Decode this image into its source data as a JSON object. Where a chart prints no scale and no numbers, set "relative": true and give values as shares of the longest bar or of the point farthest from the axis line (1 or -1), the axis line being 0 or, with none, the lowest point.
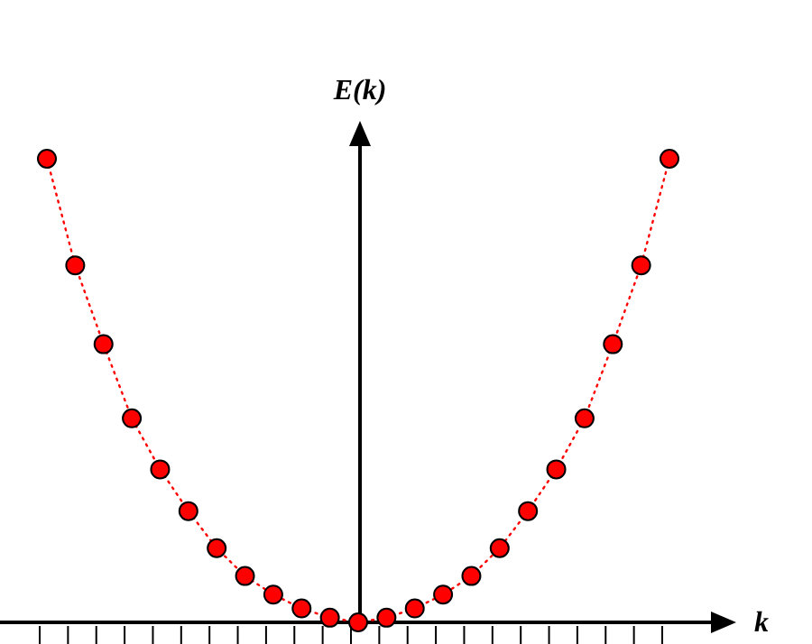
{
  "chart_data": {
    "type": "line",
    "xlabel": "k",
    "ylabel": "E(k)",
    "categories": [
      null,
      null,
      null,
      null,
      null,
      null,
      null,
      null,
      null,
      null,
      null,
      null,
      null,
      null,
      null,
      null,
      null,
      null,
      null,
      null,
      null,
      null,
      null
    ],
    "series": [
      {
        "color": "#ff0000",
        "values": [
          1,
          0.77,
          0.6,
          0.44,
          0.33,
          0.24,
          0.16,
          0.1,
          0.06,
          0.03,
          0.01,
          0,
          0.01,
          0.03,
          0.06,
          0.1,
          0.16,
          0.24,
          0.33,
          0.44,
          0.6,
          0.77,
          1
        ]
      }
    ],
    "relative": true,
    "marker": "circle",
    "line_style": "dotted"
  }
}
